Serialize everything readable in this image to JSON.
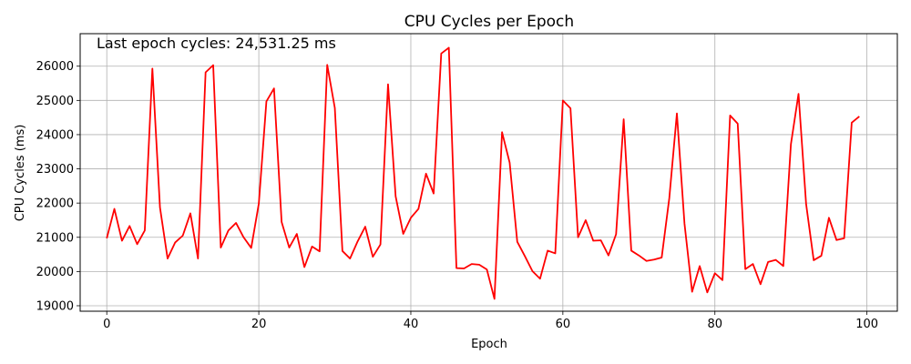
{
  "chart_data": {
    "type": "line",
    "title": "CPU Cycles per Epoch",
    "xlabel": "Epoch",
    "ylabel": "CPU Cycles (ms)",
    "annotation": "Last epoch cycles: 24,531.25 ms",
    "xlim": [
      -3.5,
      104
    ],
    "ylim": [
      18840,
      26950
    ],
    "xticks": [
      0,
      20,
      40,
      60,
      80,
      100
    ],
    "yticks": [
      19000,
      20000,
      21000,
      22000,
      23000,
      24000,
      25000,
      26000
    ],
    "grid": true,
    "series": [
      {
        "color": "#ff0000",
        "x": [
          0,
          1,
          2,
          3,
          4,
          5,
          6,
          7,
          8,
          9,
          10,
          11,
          12,
          13,
          14,
          15,
          16,
          17,
          18,
          19,
          20,
          21,
          22,
          23,
          24,
          25,
          26,
          27,
          28,
          29,
          30,
          31,
          32,
          33,
          34,
          35,
          36,
          37,
          38,
          39,
          40,
          41,
          42,
          43,
          44,
          45,
          46,
          47,
          48,
          49,
          50,
          51,
          52,
          53,
          54,
          55,
          56,
          57,
          58,
          59,
          60,
          61,
          62,
          63,
          64,
          65,
          66,
          67,
          68,
          69,
          70,
          71,
          72,
          73,
          74,
          75,
          76,
          77,
          78,
          79,
          80,
          81,
          82,
          83,
          84,
          85,
          86,
          87,
          88,
          89,
          90,
          91,
          92,
          93,
          94,
          95,
          96,
          97,
          98,
          99
        ],
        "y": [
          20970,
          21830,
          20900,
          21330,
          20800,
          21200,
          25930,
          21870,
          20380,
          20850,
          21050,
          21700,
          20380,
          25820,
          26030,
          20700,
          21200,
          21420,
          21000,
          20690,
          21980,
          24970,
          25350,
          21450,
          20700,
          21100,
          20130,
          20730,
          20590,
          26040,
          24780,
          20600,
          20380,
          20880,
          21310,
          20430,
          20790,
          25470,
          22200,
          21100,
          21570,
          21830,
          22860,
          22280,
          26370,
          26540,
          20100,
          20090,
          20220,
          20200,
          20060,
          19200,
          24070,
          23180,
          20870,
          20450,
          20010,
          19790,
          20610,
          20530,
          25000,
          24770,
          21000,
          21500,
          20900,
          20910,
          20470,
          21090,
          24450,
          20610,
          20470,
          20310,
          20350,
          20410,
          22140,
          24620,
          21400,
          19410,
          20160,
          19390,
          19950,
          19750,
          24560,
          24320,
          20070,
          20220,
          19630,
          20280,
          20340,
          20160,
          23720,
          25190,
          21970,
          20330,
          20460,
          21570,
          20920,
          20970,
          24350,
          24531
        ]
      }
    ]
  }
}
